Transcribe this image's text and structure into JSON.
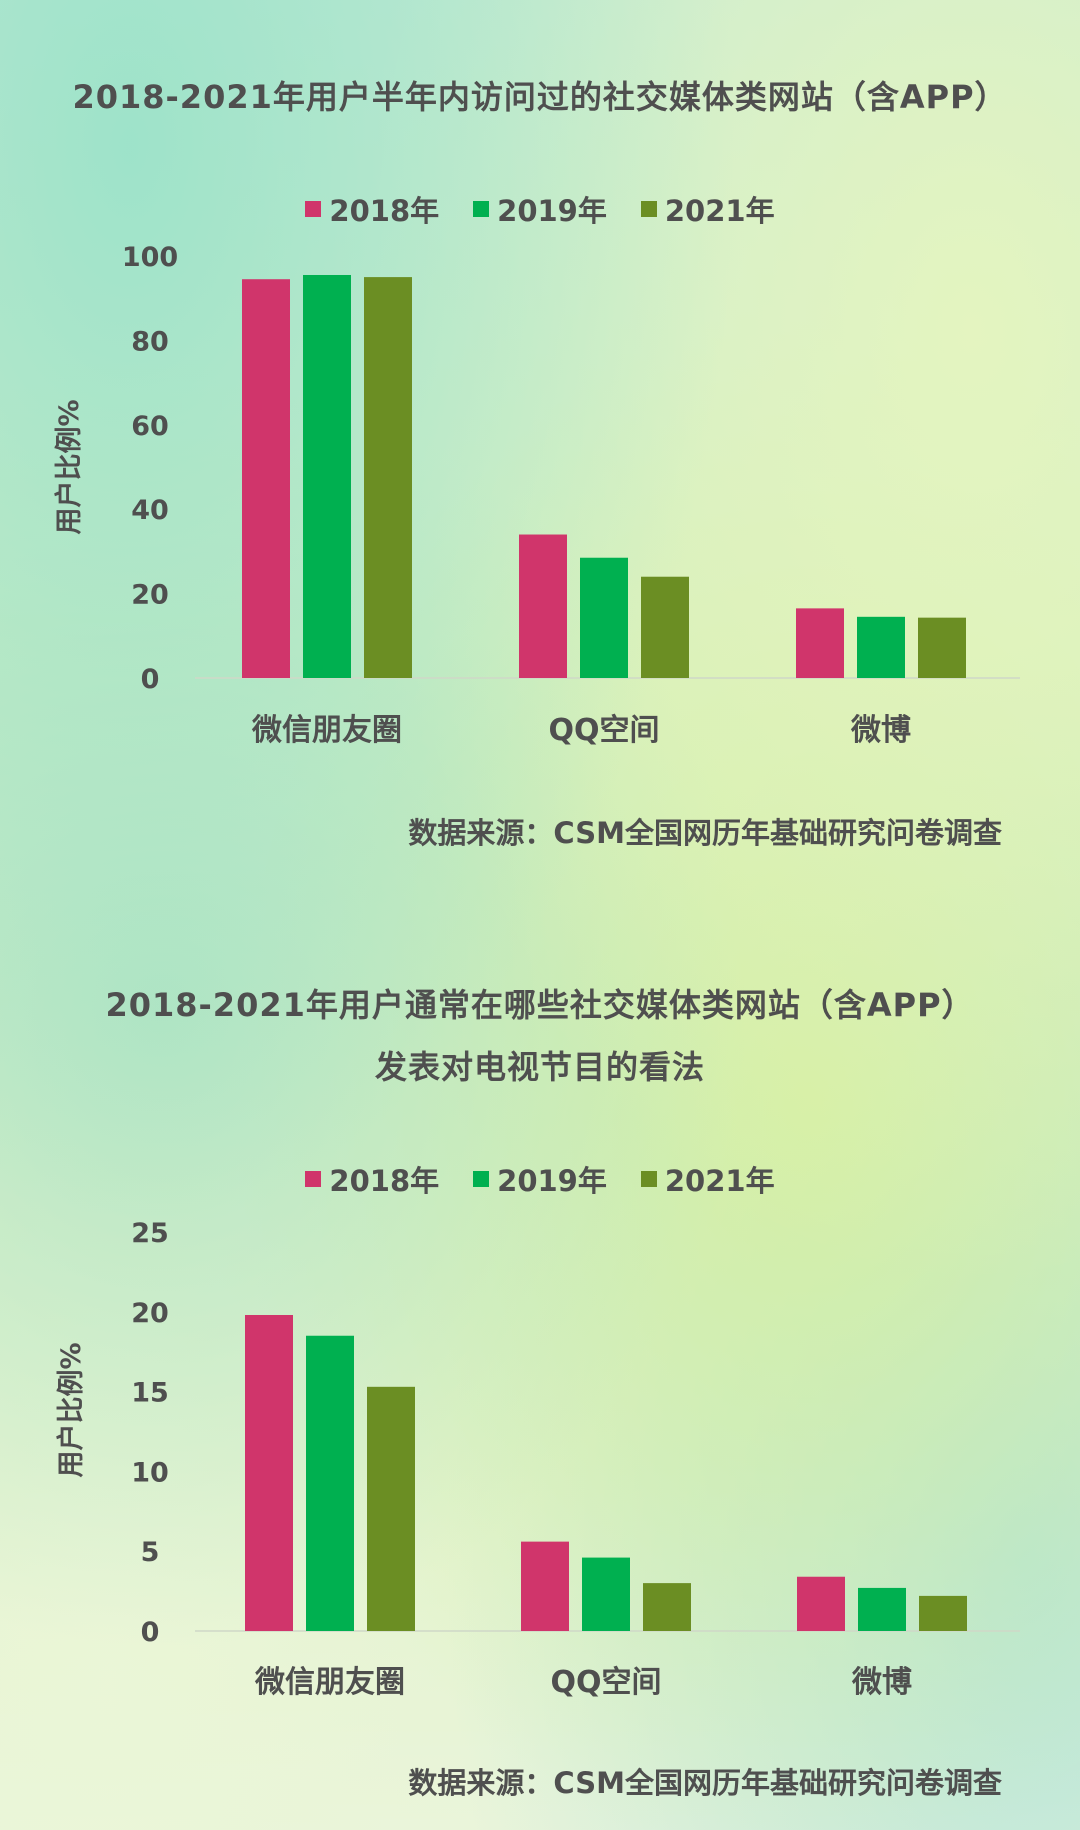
{
  "chart_data": [
    {
      "type": "bar",
      "title": "2018-2021年用户半年内访问过的社交媒体类网站（含APP）",
      "ylabel": "用户比例%",
      "categories": [
        "微信朋友圈",
        "QQ空间",
        "微博"
      ],
      "yticks": [
        "0",
        "20",
        "40",
        "60",
        "80",
        "100"
      ],
      "ylim": [
        0,
        100
      ],
      "series": [
        {
          "name": "2018年",
          "color": "#d0356b",
          "values": [
            94.5,
            34,
            16.5
          ]
        },
        {
          "name": "2019年",
          "color": "#00b050",
          "values": [
            95.5,
            28.5,
            14.5
          ]
        },
        {
          "name": "2021年",
          "color": "#6b8e23",
          "values": [
            95,
            24,
            14.3
          ]
        }
      ],
      "legend": "top",
      "grid": false,
      "source": "数据来源：CSM全国网历年基础研究问卷调查"
    },
    {
      "type": "bar",
      "title": "2018-2021年用户通常在哪些社交媒体类网站（含APP）",
      "subtitle": "发表对电视节目的看法",
      "ylabel": "用户比例%",
      "categories": [
        "微信朋友圈",
        "QQ空间",
        "微博"
      ],
      "yticks": [
        "0",
        "5",
        "10",
        "15",
        "20",
        "25"
      ],
      "ylim": [
        0,
        25
      ],
      "series": [
        {
          "name": "2018年",
          "color": "#d0356b",
          "values": [
            19.8,
            5.6,
            3.4
          ]
        },
        {
          "name": "2019年",
          "color": "#00b050",
          "values": [
            18.5,
            4.6,
            2.7
          ]
        },
        {
          "name": "2021年",
          "color": "#6b8e23",
          "values": [
            15.3,
            3.0,
            2.2
          ]
        }
      ],
      "legend": "top",
      "grid": false,
      "source": "数据来源：CSM全国网历年基础研究问卷调查"
    }
  ]
}
